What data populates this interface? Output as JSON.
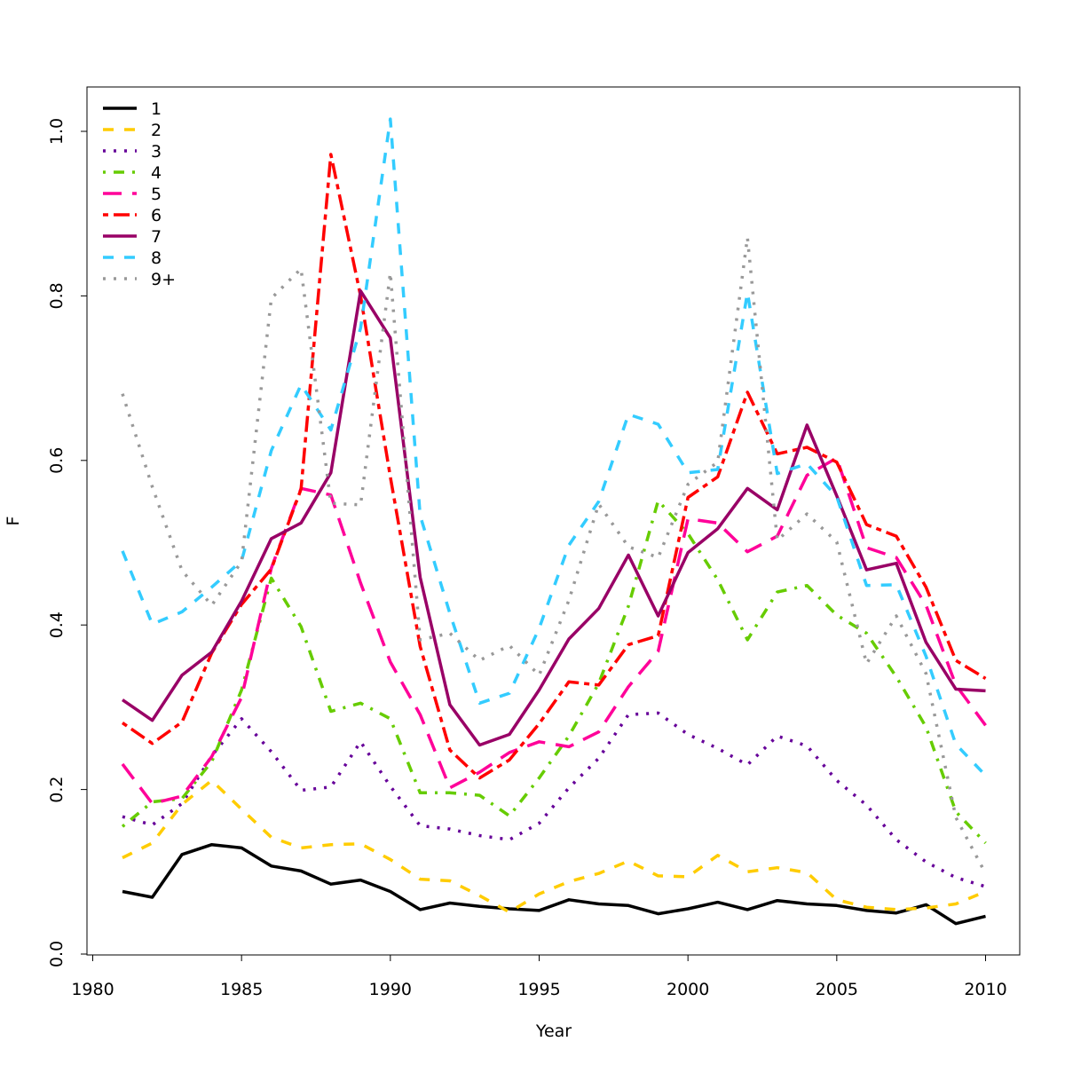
{
  "chart_data": {
    "type": "line",
    "title": "",
    "xlabel": "Year",
    "ylabel": "F",
    "xlim": [
      1980,
      2010
    ],
    "ylim": [
      0,
      1.0
    ],
    "x_ticks": [
      1980,
      1985,
      1990,
      1995,
      2000,
      2005,
      2010
    ],
    "y_ticks": [
      0.0,
      0.2,
      0.4,
      0.6,
      0.8,
      1.0
    ],
    "x_tick_labels": [
      "1980",
      "1985",
      "1990",
      "1995",
      "2000",
      "2005",
      "2010"
    ],
    "y_tick_labels": [
      "0.0",
      "0.2",
      "0.4",
      "0.6",
      "0.8",
      "1.0"
    ],
    "grid": false,
    "legend_position": "top-left",
    "x": [
      1981,
      1982,
      1983,
      1984,
      1985,
      1986,
      1987,
      1988,
      1989,
      1990,
      1991,
      1992,
      1993,
      1994,
      1995,
      1996,
      1997,
      1998,
      1999,
      2000,
      2001,
      2002,
      2003,
      2004,
      2005,
      2006,
      2007,
      2008,
      2009,
      2010
    ],
    "series": [
      {
        "name": "1",
        "color": "#000000",
        "dash": "solid",
        "values": [
          0.076,
          0.069,
          0.121,
          0.133,
          0.129,
          0.107,
          0.101,
          0.085,
          0.09,
          0.076,
          0.054,
          0.062,
          0.058,
          0.055,
          0.053,
          0.066,
          0.061,
          0.059,
          0.049,
          0.055,
          0.063,
          0.054,
          0.065,
          0.061,
          0.059,
          0.053,
          0.05,
          0.06,
          0.037,
          0.046
        ]
      },
      {
        "name": "2",
        "color": "#FFCC00",
        "dash": "dashed",
        "values": [
          0.117,
          0.135,
          0.182,
          0.211,
          0.176,
          0.142,
          0.129,
          0.133,
          0.134,
          0.115,
          0.091,
          0.089,
          0.071,
          0.051,
          0.073,
          0.088,
          0.098,
          0.113,
          0.095,
          0.094,
          0.12,
          0.1,
          0.105,
          0.099,
          0.066,
          0.057,
          0.054,
          0.056,
          0.061,
          0.076
        ]
      },
      {
        "name": "3",
        "color": "#660099",
        "dash": "dotted",
        "values": [
          0.167,
          0.157,
          0.183,
          0.241,
          0.286,
          0.246,
          0.199,
          0.203,
          0.258,
          0.204,
          0.156,
          0.152,
          0.144,
          0.139,
          0.159,
          0.202,
          0.238,
          0.291,
          0.293,
          0.267,
          0.25,
          0.23,
          0.265,
          0.253,
          0.211,
          0.181,
          0.139,
          0.112,
          0.093,
          0.082
        ]
      },
      {
        "name": "4",
        "color": "#66CC00",
        "dash": "dotdash",
        "values": [
          0.155,
          0.185,
          0.189,
          0.234,
          0.321,
          0.457,
          0.398,
          0.295,
          0.305,
          0.286,
          0.196,
          0.196,
          0.193,
          0.168,
          0.214,
          0.265,
          0.329,
          0.423,
          0.551,
          0.511,
          0.455,
          0.382,
          0.44,
          0.448,
          0.412,
          0.39,
          0.337,
          0.276,
          0.173,
          0.135
        ]
      },
      {
        "name": "5",
        "color": "#FF0099",
        "dash": "longdash",
        "values": [
          0.231,
          0.183,
          0.192,
          0.24,
          0.312,
          0.469,
          0.566,
          0.558,
          0.451,
          0.355,
          0.291,
          0.202,
          0.221,
          0.245,
          0.258,
          0.252,
          0.27,
          0.325,
          0.368,
          0.529,
          0.524,
          0.489,
          0.508,
          0.582,
          0.603,
          0.494,
          0.482,
          0.424,
          0.327,
          0.278
        ]
      },
      {
        "name": "6",
        "color": "#FF0000",
        "dash": "twodash",
        "values": [
          0.281,
          0.256,
          0.282,
          0.366,
          0.425,
          0.468,
          0.565,
          0.972,
          0.8,
          0.58,
          0.374,
          0.248,
          0.214,
          0.236,
          0.28,
          0.331,
          0.327,
          0.376,
          0.387,
          0.555,
          0.58,
          0.683,
          0.608,
          0.616,
          0.598,
          0.522,
          0.508,
          0.446,
          0.357,
          0.335
        ]
      },
      {
        "name": "7",
        "color": "#990066",
        "dash": "solid",
        "values": [
          0.309,
          0.284,
          0.339,
          0.367,
          0.429,
          0.505,
          0.524,
          0.585,
          0.806,
          0.749,
          0.458,
          0.303,
          0.254,
          0.267,
          0.321,
          0.383,
          0.42,
          0.485,
          0.411,
          0.488,
          0.517,
          0.566,
          0.54,
          0.643,
          0.557,
          0.467,
          0.475,
          0.379,
          0.322,
          0.32
        ]
      },
      {
        "name": "8",
        "color": "#33CCFF",
        "dash": "dashed",
        "values": [
          0.49,
          0.401,
          0.416,
          0.446,
          0.478,
          0.612,
          0.692,
          0.637,
          0.761,
          1.015,
          0.533,
          0.414,
          0.305,
          0.317,
          0.396,
          0.497,
          0.55,
          0.656,
          0.644,
          0.585,
          0.589,
          0.804,
          0.584,
          0.596,
          0.556,
          0.448,
          0.449,
          0.362,
          0.255,
          0.217
        ]
      },
      {
        "name": "9+",
        "color": "#999999",
        "dash": "dotted",
        "values": [
          0.681,
          0.568,
          0.466,
          0.424,
          0.477,
          0.797,
          0.833,
          0.548,
          0.546,
          0.828,
          0.382,
          0.39,
          0.357,
          0.375,
          0.339,
          0.43,
          0.547,
          0.495,
          0.482,
          0.571,
          0.598,
          0.871,
          0.503,
          0.535,
          0.501,
          0.353,
          0.411,
          0.341,
          0.166,
          0.098
        ]
      }
    ]
  }
}
